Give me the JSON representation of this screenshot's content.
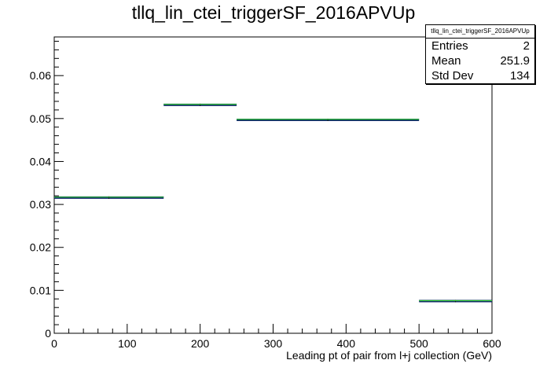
{
  "title": "tllq_lin_ctei_triggerSF_2016APVUp",
  "stats": {
    "name": "tllq_lin_ctei_triggerSF_2016APVUp",
    "rows": [
      {
        "label": "Entries",
        "value": "2"
      },
      {
        "label": "Mean",
        "value": "251.9"
      },
      {
        "label": "Std Dev",
        "value": "134"
      }
    ]
  },
  "colors": {
    "nominal": "#0b1d6b",
    "variation": "#33cc33",
    "axis": "#000000"
  },
  "chart_data": {
    "type": "histogram",
    "title": "tllq_lin_ctei_triggerSF_2016APVUp",
    "xlabel": "Leading pt of pair from l+j collection (GeV)",
    "ylabel": "",
    "xlim": [
      0,
      600
    ],
    "ylim": [
      0,
      0.069
    ],
    "x_ticks": [
      0,
      100,
      200,
      300,
      400,
      500,
      600
    ],
    "y_ticks": [
      0,
      0.01,
      0.02,
      0.03,
      0.04,
      0.05,
      0.06
    ],
    "x_tick_labels": [
      "0",
      "100",
      "200",
      "300",
      "400",
      "500",
      "600"
    ],
    "y_tick_labels": [
      "0",
      "0.01",
      "0.02",
      "0.03",
      "0.04",
      "0.05",
      "0.06"
    ],
    "bin_edges": [
      0,
      150,
      250,
      500,
      600
    ],
    "series": [
      {
        "values": [
          0.0316,
          0.0532,
          0.0497,
          0.0075
        ]
      },
      {
        "values": [
          0.0317,
          0.0533,
          0.0498,
          0.0076
        ]
      }
    ]
  }
}
